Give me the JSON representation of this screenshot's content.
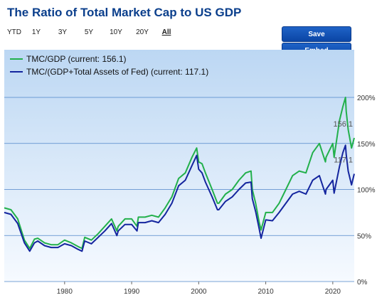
{
  "header": {
    "title": "The Ratio of Total Market Cap to US GDP"
  },
  "ranges": [
    "YTD",
    "1Y",
    "3Y",
    "5Y",
    "10Y",
    "20Y",
    "All"
  ],
  "active_range": "All",
  "buttons": {
    "save": "Save",
    "embed": "Embed"
  },
  "colors": {
    "tmc_gdp": "#22b04b",
    "tmc_gdp_fed": "#14259e",
    "title": "#0b3f8c",
    "plot_bg_top": "#bcd7f3",
    "plot_bg_bottom": "#f6faff"
  },
  "chart_data": {
    "type": "line",
    "xlim": [
      1971,
      2023.2
    ],
    "ylim": [
      0,
      200
    ],
    "x_ticks": [
      "1980",
      "1990",
      "2000",
      "2010",
      "2020"
    ],
    "y_ticks": [
      "0%",
      "50%",
      "100%",
      "150%",
      "200%"
    ],
    "grid": "horizontal",
    "legend": "top-left",
    "series": [
      {
        "name": "TMC/GDP (current: 156.1)",
        "current_label": "156.1",
        "x": [
          1971,
          1972,
          1973,
          1974,
          1974.8,
          1975.5,
          1976,
          1977,
          1978,
          1979,
          1980,
          1981,
          1982,
          1982.6,
          1983,
          1984,
          1985,
          1986,
          1987,
          1987.8,
          1988,
          1989,
          1990,
          1990.8,
          1991,
          1992,
          1993,
          1994,
          1995,
          1996,
          1997,
          1998,
          1999,
          1999.7,
          2000,
          2000.5,
          2001,
          2002,
          2002.8,
          2003,
          2004,
          2005,
          2006,
          2007,
          2007.8,
          2008,
          2008.5,
          2009,
          2009.3,
          2010,
          2011,
          2012,
          2013,
          2014,
          2015,
          2016,
          2017,
          2018,
          2018.9,
          2019,
          2020,
          2020.2,
          2021,
          2021.5,
          2021.9,
          2022,
          2022.3,
          2022.8,
          2023.2
        ],
        "y": [
          80,
          78,
          68,
          45,
          36,
          46,
          47,
          42,
          40,
          40,
          45,
          42,
          38,
          36,
          48,
          45,
          52,
          60,
          68,
          55,
          60,
          68,
          68,
          60,
          70,
          70,
          72,
          70,
          80,
          92,
          112,
          118,
          135,
          145,
          130,
          128,
          118,
          100,
          85,
          85,
          95,
          100,
          110,
          118,
          120,
          100,
          85,
          65,
          56,
          75,
          75,
          85,
          100,
          115,
          120,
          118,
          140,
          150,
          130,
          135,
          150,
          135,
          175,
          190,
          200,
          185,
          165,
          145,
          156
        ]
      },
      {
        "name": "TMC/(GDP+Total Assets of Fed) (current: 117.1)",
        "current_label": "117.1",
        "x": [
          1971,
          1972,
          1973,
          1974,
          1974.8,
          1975.5,
          1976,
          1977,
          1978,
          1979,
          1980,
          1981,
          1982,
          1982.6,
          1983,
          1984,
          1985,
          1986,
          1987,
          1987.8,
          1988,
          1989,
          1990,
          1990.8,
          1991,
          1992,
          1993,
          1994,
          1995,
          1996,
          1997,
          1998,
          1999,
          1999.7,
          2000,
          2000.5,
          2001,
          2002,
          2002.8,
          2003,
          2004,
          2005,
          2006,
          2007,
          2007.8,
          2008,
          2008.5,
          2009,
          2009.3,
          2010,
          2011,
          2012,
          2013,
          2014,
          2015,
          2016,
          2017,
          2018,
          2018.9,
          2019,
          2020,
          2020.2,
          2021,
          2021.5,
          2021.9,
          2022,
          2022.3,
          2022.8,
          2023.2
        ],
        "y": [
          75,
          73,
          63,
          42,
          33,
          42,
          44,
          39,
          37,
          37,
          41,
          39,
          35,
          33,
          44,
          41,
          48,
          55,
          63,
          50,
          55,
          62,
          62,
          55,
          64,
          64,
          66,
          64,
          73,
          85,
          104,
          110,
          126,
          137,
          122,
          118,
          108,
          92,
          78,
          78,
          87,
          92,
          100,
          107,
          108,
          90,
          76,
          58,
          47,
          67,
          66,
          75,
          85,
          95,
          98,
          95,
          110,
          115,
          95,
          100,
          110,
          96,
          125,
          140,
          148,
          138,
          120,
          105,
          117
        ]
      }
    ]
  }
}
